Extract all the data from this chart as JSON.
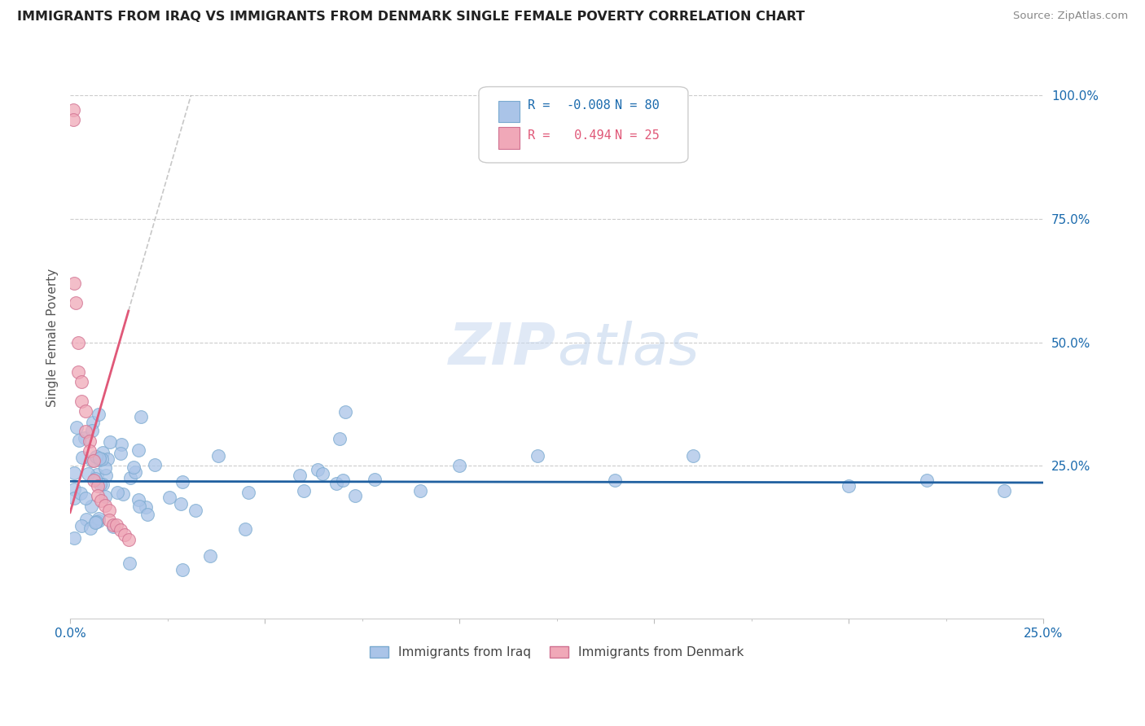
{
  "title": "IMMIGRANTS FROM IRAQ VS IMMIGRANTS FROM DENMARK SINGLE FEMALE POVERTY CORRELATION CHART",
  "source": "Source: ZipAtlas.com",
  "ylabel": "Single Female Poverty",
  "legend_entry1_label": "Immigrants from Iraq",
  "legend_entry1_color": "#aac4e8",
  "legend_entry1_edge": "#7aaad0",
  "legend_entry2_label": "Immigrants from Denmark",
  "legend_entry2_color": "#f0a8b8",
  "legend_entry2_edge": "#d07090",
  "R_iraq": -0.008,
  "N_iraq": 80,
  "R_denmark": 0.494,
  "N_denmark": 25,
  "iraq_line_color": "#2060a0",
  "denmark_line_color": "#e05878",
  "watermark_zip": "ZIP",
  "watermark_atlas": "atlas",
  "watermark_color_zip": "#c8d8ef",
  "watermark_color_atlas": "#b0c8e8",
  "ytick_values": [
    0.0,
    0.25,
    0.5,
    0.75,
    1.0
  ],
  "ytick_labels": [
    "",
    "25.0%",
    "50.0%",
    "75.0%",
    "100.0%"
  ],
  "xlim": [
    0.0,
    0.25
  ],
  "ylim": [
    -0.06,
    1.08
  ],
  "background_color": "#ffffff",
  "grid_color": "#cccccc",
  "title_color": "#222222",
  "tick_color": "#1a6aad",
  "legend_R_color_iraq": "#1a6aad",
  "legend_N_color_iraq": "#1a6aad",
  "legend_R_color_denmark": "#e05878",
  "legend_N_color_denmark": "#e05878"
}
